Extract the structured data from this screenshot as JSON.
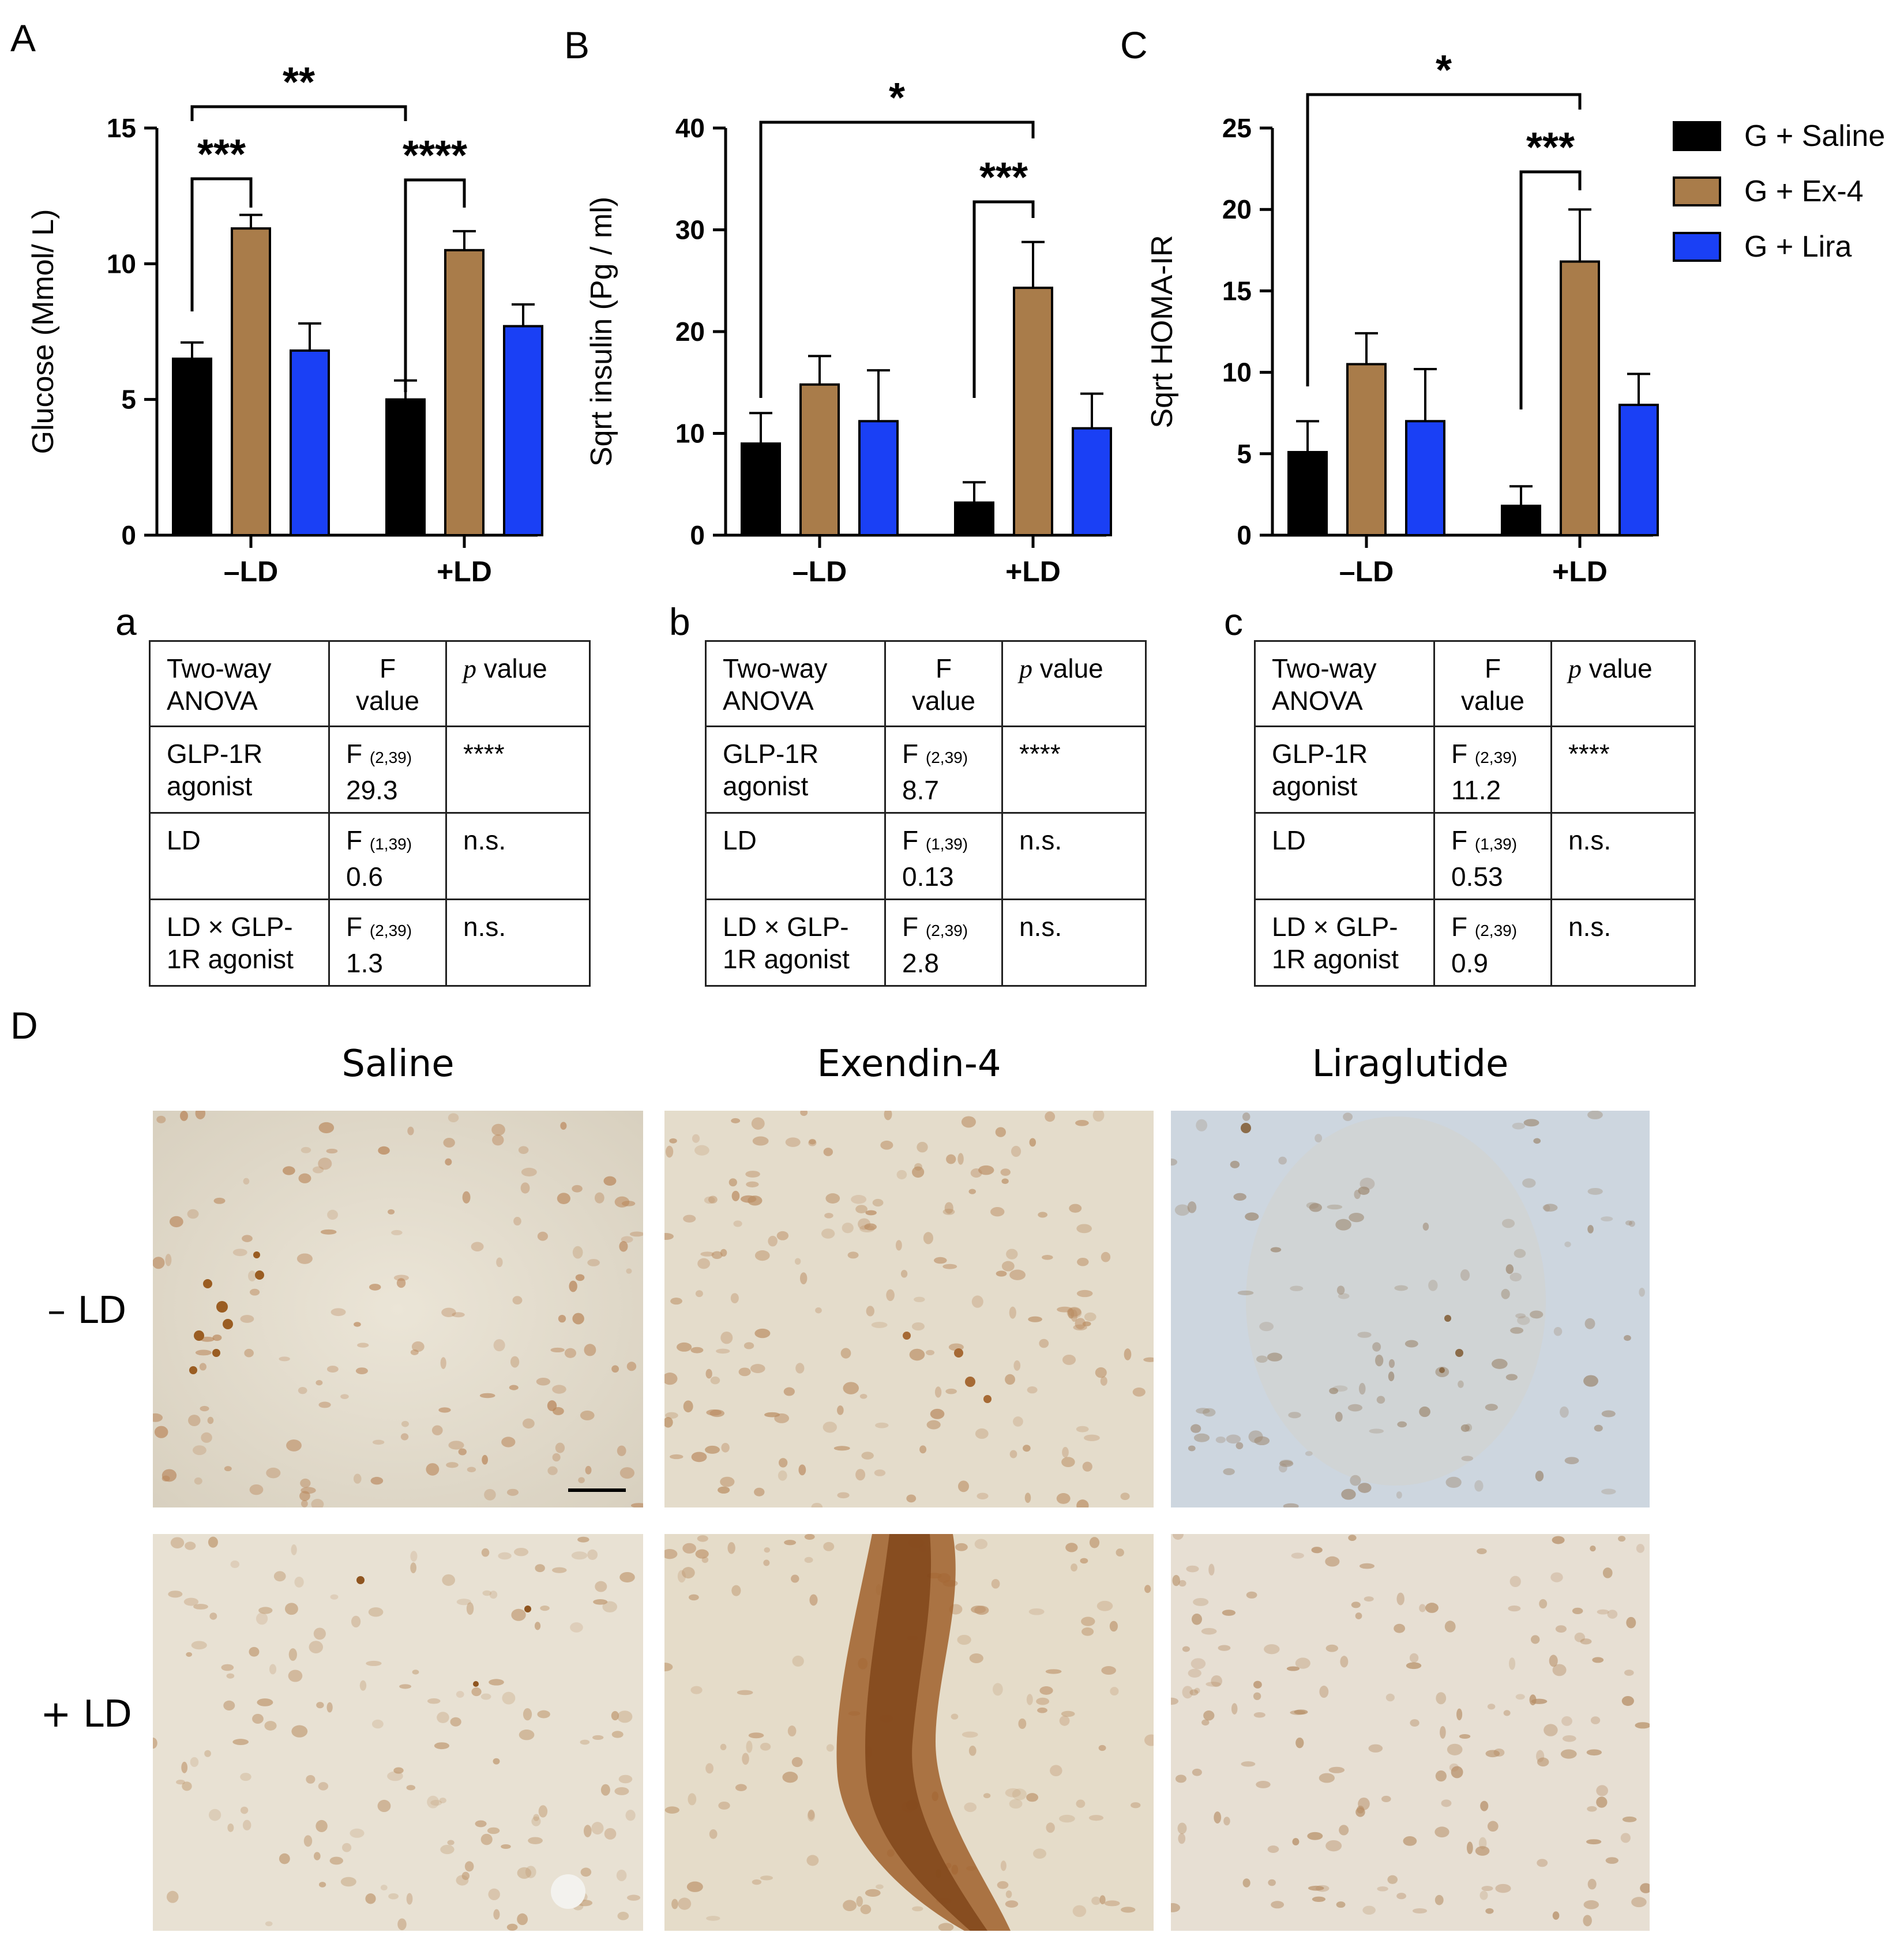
{
  "panel_labels": {
    "A": "A",
    "B": "B",
    "C": "C",
    "a": "a",
    "b": "b",
    "c": "c",
    "D": "D"
  },
  "legend": [
    {
      "label": "G + Saline",
      "color": "#000000"
    },
    {
      "label": "G + Ex-4",
      "color": "#A97C4A"
    },
    {
      "label": "G + Lira",
      "color": "#1A40F5"
    }
  ],
  "chart_data": [
    {
      "type": "bar",
      "ylabel": "Glucose (Mmol/ L)",
      "categories": [
        "–LD",
        "+LD"
      ],
      "ylim": [
        0,
        15
      ],
      "yticks": [
        "0",
        "5",
        "10",
        "15"
      ],
      "series": [
        {
          "name": "G + Saline",
          "values": [
            6.5,
            5.0
          ],
          "errors": [
            0.6,
            0.7
          ]
        },
        {
          "name": "G + Ex-4",
          "values": [
            11.3,
            10.5
          ],
          "errors": [
            0.5,
            0.7
          ]
        },
        {
          "name": "G + Lira",
          "values": [
            6.8,
            7.7
          ],
          "errors": [
            1.0,
            0.8
          ]
        }
      ],
      "significance": [
        {
          "label": "**",
          "from": "–LD G + Saline",
          "to": "+LD G + Saline"
        },
        {
          "label": "***",
          "from": "–LD G + Saline",
          "to": "–LD G + Ex-4"
        },
        {
          "label": "****",
          "from": "+LD G + Saline",
          "to": "+LD G + Ex-4"
        }
      ]
    },
    {
      "type": "bar",
      "ylabel": "Sqrt insulin (Pg / ml)",
      "categories": [
        "–LD",
        "+LD"
      ],
      "ylim": [
        0,
        40
      ],
      "yticks": [
        "0",
        "10",
        "20",
        "30",
        "40"
      ],
      "series": [
        {
          "name": "G + Saline",
          "values": [
            9.0,
            3.2
          ],
          "errors": [
            3.0,
            2.0
          ]
        },
        {
          "name": "G + Ex-4",
          "values": [
            14.8,
            24.3
          ],
          "errors": [
            2.8,
            4.5
          ]
        },
        {
          "name": "G + Lira",
          "values": [
            11.2,
            10.5
          ],
          "errors": [
            5.0,
            3.4
          ]
        }
      ],
      "significance": [
        {
          "label": "*",
          "from": "–LD G + Saline",
          "to": "+LD G + Ex-4"
        },
        {
          "label": "***",
          "from": "+LD G + Saline",
          "to": "+LD G + Ex-4"
        }
      ]
    },
    {
      "type": "bar",
      "ylabel": "Sqrt HOMA-IR",
      "categories": [
        "–LD",
        "+LD"
      ],
      "ylim": [
        0,
        25
      ],
      "yticks": [
        "0",
        "5",
        "10",
        "15",
        "20",
        "25"
      ],
      "series": [
        {
          "name": "G + Saline",
          "values": [
            5.1,
            1.8
          ],
          "errors": [
            1.9,
            1.2
          ]
        },
        {
          "name": "G + Ex-4",
          "values": [
            10.5,
            16.8
          ],
          "errors": [
            1.9,
            3.2
          ]
        },
        {
          "name": "G + Lira",
          "values": [
            7.0,
            8.0
          ],
          "errors": [
            3.2,
            1.9
          ]
        }
      ],
      "significance": [
        {
          "label": "*",
          "from": "–LD G + Saline",
          "to": "+LD G + Ex-4"
        },
        {
          "label": "***",
          "from": "+LD G + Saline",
          "to": "+LD G + Ex-4"
        }
      ]
    }
  ],
  "tables": [
    {
      "header": {
        "col1a": "Two-way",
        "col1b": "ANOVA",
        "col2a": "F",
        "col2b": "value",
        "col3p": "p",
        "col3v": " value"
      },
      "rows": [
        {
          "r1": "GLP-1R",
          "r2": "agonist",
          "fsub": "(2,39)",
          "fval": "29.3",
          "p": "****"
        },
        {
          "r1": "LD",
          "r2": "",
          "fsub": "(1,39)",
          "fval": "0.6",
          "p": "n.s."
        },
        {
          "r1": "LD ×  GLP-",
          "r2": "1R agonist",
          "fsub": "(2,39)",
          "fval": "1.3",
          "p": "n.s."
        }
      ]
    },
    {
      "header": {
        "col1a": "Two-way",
        "col1b": "ANOVA",
        "col2a": "F",
        "col2b": "value",
        "col3p": "p",
        "col3v": " value"
      },
      "rows": [
        {
          "r1": "GLP-1R",
          "r2": "agonist",
          "fsub": "(2,39)",
          "fval": "8.7",
          "p": "****"
        },
        {
          "r1": "LD",
          "r2": "",
          "fsub": "(1,39)",
          "fval": "0.13",
          "p": "n.s."
        },
        {
          "r1": "LD ×  GLP-",
          "r2": "1R agonist",
          "fsub": "(2,39)",
          "fval": "2.8",
          "p": "n.s."
        }
      ]
    },
    {
      "header": {
        "col1a": "Two-way",
        "col1b": "ANOVA",
        "col2a": "F",
        "col2b": "value",
        "col3p": "p",
        "col3v": " value"
      },
      "rows": [
        {
          "r1": "GLP-1R",
          "r2": "agonist",
          "fsub": "(2,39)",
          "fval": "11.2",
          "p": "****"
        },
        {
          "r1": "LD",
          "r2": "",
          "fsub": "(1,39)",
          "fval": "0.53",
          "p": "n.s."
        },
        {
          "r1": "LD ×  GLP-",
          "r2": "1R agonist",
          "fsub": "(2,39)",
          "fval": "0.9",
          "p": "n.s."
        }
      ]
    }
  ],
  "fletter": "F",
  "micrographs": {
    "columns": [
      "Saline",
      "Exendin-4",
      "Liraglutide"
    ],
    "rows": [
      "– LD",
      "+ LD"
    ]
  }
}
